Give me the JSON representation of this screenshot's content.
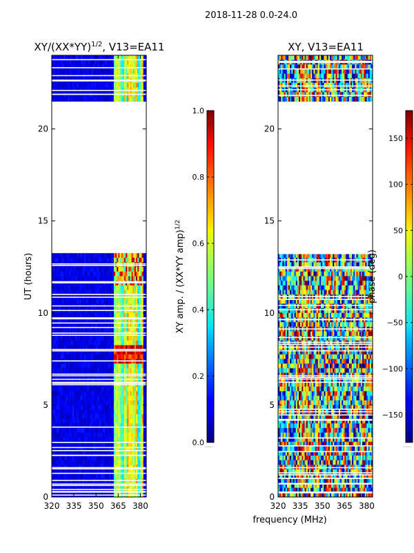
{
  "suptitle": "2018-11-28 0.0-24.0",
  "xlabel_shared": "frequency (MHz)",
  "chart_data": [
    {
      "type": "heatmap",
      "id": "amp",
      "title_main": "XY/(XX*YY)",
      "title_exp": "1/2",
      "title_suffix": ", V13=EA11",
      "xlabel": "",
      "ylabel": "UT (hours)",
      "xlim": [
        320,
        384
      ],
      "ylim": [
        0,
        24
      ],
      "xticks": [
        320,
        335,
        350,
        365,
        380
      ],
      "yticks": [
        0,
        5,
        10,
        15,
        20
      ],
      "empty_ut_ranges": [
        [
          13.3,
          21.6
        ]
      ],
      "colorbar": {
        "label_main": "XY amp. / (XX*YY amp)",
        "label_exp": "1/2",
        "range": [
          0.0,
          1.0
        ],
        "ticks": [
          0.0,
          0.2,
          0.4,
          0.6,
          0.8,
          1.0
        ],
        "ticklabels": [
          "0.0",
          "0.2",
          "0.4",
          "0.6",
          "0.8",
          "1.0"
        ],
        "colormap": "jet"
      }
    },
    {
      "type": "heatmap",
      "id": "phase",
      "title_main": "XY, V13=EA11",
      "xlabel": "frequency (MHz)",
      "ylabel": "",
      "xlim": [
        320,
        384
      ],
      "ylim": [
        0,
        24
      ],
      "xticks": [
        320,
        335,
        350,
        365,
        380
      ],
      "yticks": [
        0,
        5,
        10,
        15,
        20
      ],
      "empty_ut_ranges": [
        [
          13.3,
          21.6
        ]
      ],
      "colorbar": {
        "label_main": "phase (deg)",
        "range": [
          -180,
          180
        ],
        "ticks": [
          -150,
          -100,
          -50,
          0,
          50,
          100,
          150
        ],
        "ticklabels": [
          "−150",
          "−100",
          "−50",
          "0",
          "50",
          "100",
          "150"
        ],
        "colormap": "jet"
      }
    }
  ]
}
